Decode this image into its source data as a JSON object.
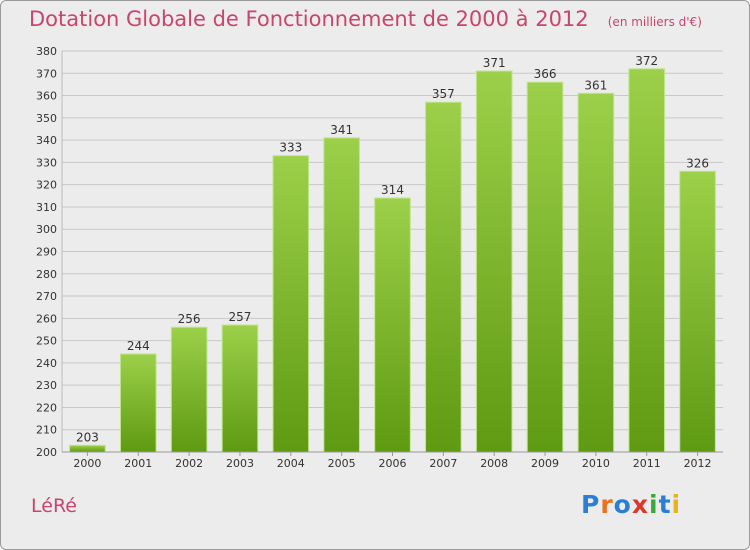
{
  "header": {
    "title": "Dotation Globale de Fonctionnement de 2000 à 2012",
    "unit": "(en milliers d'€)"
  },
  "footer": {
    "commune": "LéRé",
    "logo_text": "Proxiti"
  },
  "colors": {
    "title": "#c8456b",
    "bar_light": "#9dd04a",
    "bar_dark": "#5e9a12",
    "grid": "#c8c8c8",
    "background": "#ececec"
  },
  "chart_data": {
    "type": "bar",
    "categories": [
      "2000",
      "2001",
      "2002",
      "2003",
      "2004",
      "2005",
      "2006",
      "2007",
      "2008",
      "2009",
      "2010",
      "2011",
      "2012"
    ],
    "values": [
      203,
      244,
      256,
      257,
      333,
      341,
      314,
      357,
      371,
      366,
      361,
      372,
      326
    ],
    "ylim": [
      200,
      380
    ],
    "yticks": [
      200,
      210,
      220,
      230,
      240,
      250,
      260,
      270,
      280,
      290,
      300,
      310,
      320,
      330,
      340,
      350,
      360,
      370,
      380
    ],
    "grid": true,
    "data_labels": true
  }
}
